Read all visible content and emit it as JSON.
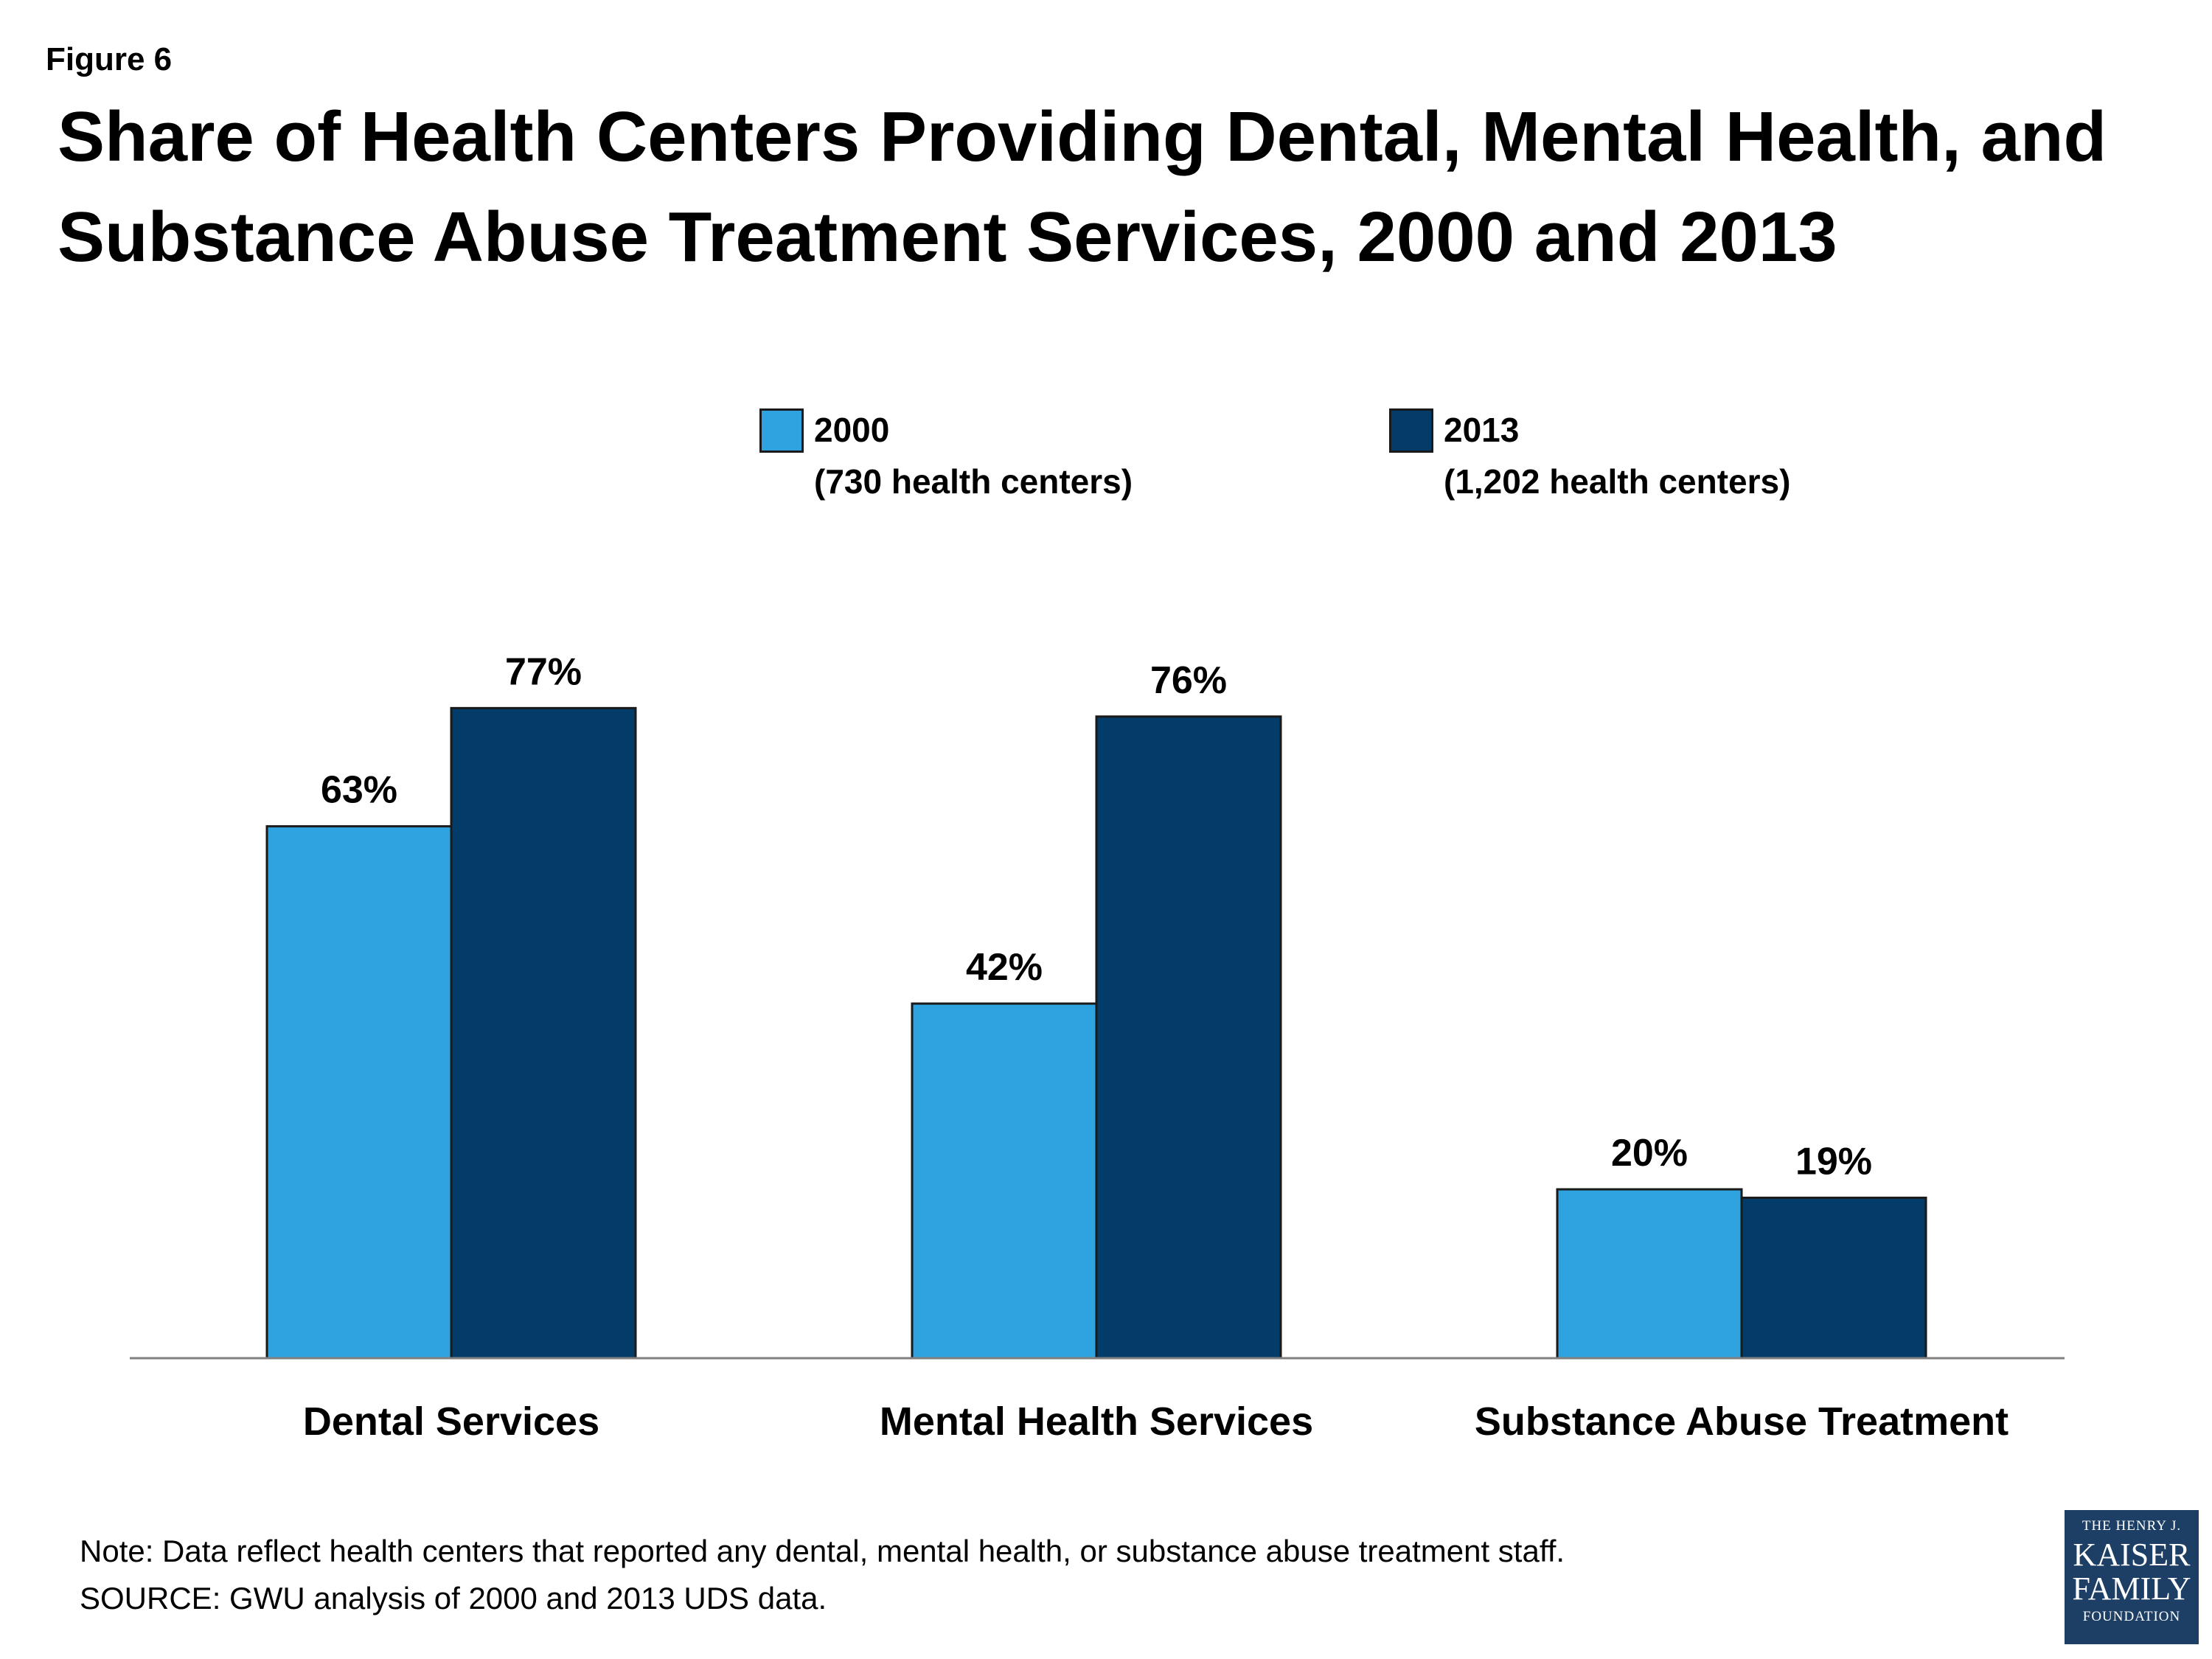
{
  "figure_label": "Figure 6",
  "title": "Share of Health Centers Providing Dental, Mental Health, and Substance Abuse Treatment Services, 2000 and 2013",
  "legend": [
    {
      "line1": "2000",
      "line2": "(730 health centers)",
      "color": "#2ea3e0"
    },
    {
      "line1": "2013",
      "line2": "(1,202 health centers)",
      "color": "#033c68"
    }
  ],
  "chart_data": {
    "type": "bar",
    "title": "Share of Health Centers Providing Dental, Mental Health, and Substance Abuse Treatment Services, 2000 and 2013",
    "categories": [
      "Dental Services",
      "Mental Health Services",
      "Substance Abuse Treatment"
    ],
    "series": [
      {
        "name": "2000 (730 health centers)",
        "values": [
          63,
          42,
          20
        ],
        "labels": [
          "63%",
          "42%",
          "20%"
        ],
        "color": "#2ea3e0"
      },
      {
        "name": "2013 (1,202 health centers)",
        "values": [
          77,
          76,
          19
        ],
        "labels": [
          "77%",
          "76%",
          "19%"
        ],
        "color": "#033c68"
      }
    ],
    "xlabel": "",
    "ylabel": "",
    "ylim": [
      0,
      100
    ],
    "grid": false,
    "legend_position": "top"
  },
  "note": "Note: Data reflect health centers that reported any dental, mental health, or substance abuse treatment staff.",
  "source": "SOURCE: GWU analysis of 2000 and 2013 UDS data.",
  "logo": {
    "line1": "THE HENRY J.",
    "line2": "KAISER",
    "line3": "FAMILY",
    "line4": "FOUNDATION"
  }
}
